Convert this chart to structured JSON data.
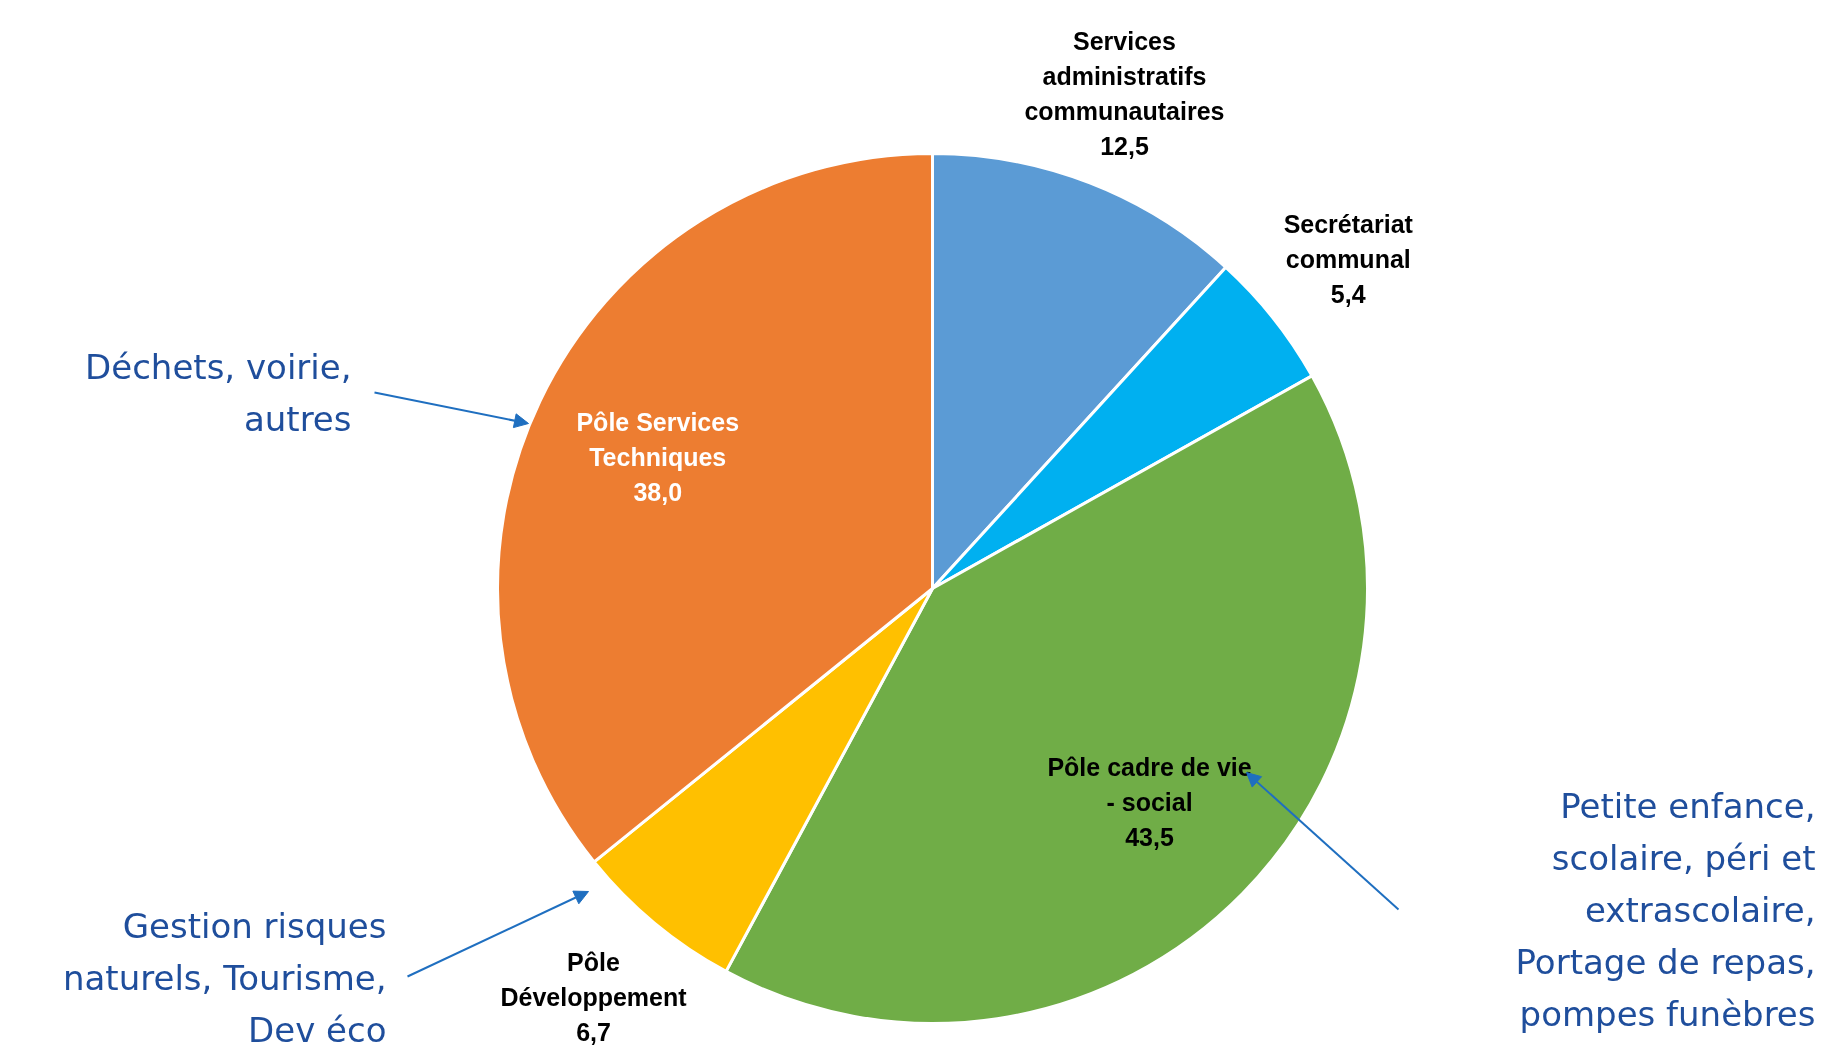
{
  "chart_data": {
    "type": "pie",
    "categories": [
      "Services administratifs communautaires",
      "Secrétariat communal",
      "Pôle cadre de vie - social",
      "Pôle Développement",
      "Pôle Services Techniques"
    ],
    "values": [
      12.5,
      5.4,
      43.5,
      6.7,
      38.0
    ],
    "value_labels": [
      "12,5",
      "5,4",
      "43,5",
      "6,7",
      "38,0"
    ],
    "colors": [
      "#5b9bd5",
      "#00b0f0",
      "#70ad47",
      "#ffc000",
      "#ed7d31"
    ],
    "annotations": [
      "Déchets, voirie, autres",
      "Gestion risques naturels, Tourisme, Dev éco",
      "Petite enfance, scolaire, péri et extrascolaire, Portage de repas, pompes funèbres"
    ]
  }
}
